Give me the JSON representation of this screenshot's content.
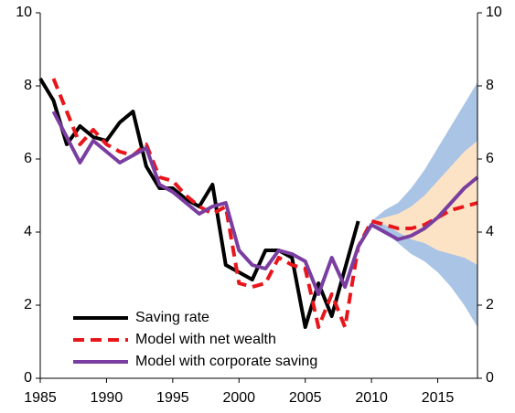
{
  "chart_data": {
    "type": "line",
    "xlim": [
      1985,
      2018
    ],
    "xticks": [
      1985,
      1990,
      1995,
      2000,
      2005,
      2010,
      2015
    ],
    "ylim": [
      0,
      10
    ],
    "yticks": [
      0,
      2,
      4,
      6,
      8,
      10
    ],
    "y2lim": [
      0,
      10
    ],
    "y2ticks": [
      0,
      2,
      4,
      6,
      8,
      10
    ],
    "legend": "lower left",
    "bands": [
      {
        "color": "#a9c4e4",
        "x": [
          2010,
          2011,
          2012,
          2013,
          2014,
          2015,
          2016,
          2017,
          2018
        ],
        "lower": [
          4.3,
          4.0,
          3.7,
          3.4,
          3.2,
          2.9,
          2.5,
          2.0,
          1.4
        ],
        "upper": [
          4.3,
          4.6,
          4.8,
          5.2,
          5.7,
          6.3,
          6.9,
          7.5,
          8.1
        ]
      },
      {
        "color": "#fde3c6",
        "x": [
          2010,
          2011,
          2012,
          2013,
          2014,
          2015,
          2016,
          2017,
          2018
        ],
        "lower": [
          4.3,
          4.2,
          4.0,
          3.8,
          3.7,
          3.5,
          3.4,
          3.3,
          3.1
        ],
        "upper": [
          4.3,
          4.4,
          4.5,
          4.7,
          5.0,
          5.4,
          5.8,
          6.2,
          6.5
        ]
      }
    ],
    "series": [
      {
        "name": "Saving rate",
        "color": "#000000",
        "dash": false,
        "x": [
          1985,
          1986,
          1987,
          1988,
          1989,
          1990,
          1991,
          1992,
          1993,
          1994,
          1995,
          1996,
          1997,
          1998,
          1999,
          2000,
          2001,
          2002,
          2003,
          2004,
          2005,
          2006,
          2007,
          2008,
          2009
        ],
        "values": [
          8.2,
          7.6,
          6.4,
          6.9,
          6.6,
          6.5,
          7.0,
          7.3,
          5.8,
          5.2,
          5.2,
          4.9,
          4.7,
          5.3,
          3.1,
          2.9,
          2.7,
          3.5,
          3.5,
          3.3,
          1.4,
          2.6,
          1.7,
          3.0,
          4.3
        ]
      },
      {
        "name": "Model with net wealth",
        "color": "#e8161b",
        "dash": true,
        "x": [
          1986,
          1987,
          1988,
          1989,
          1990,
          1991,
          1992,
          1993,
          1994,
          1995,
          1996,
          1997,
          1998,
          1999,
          2000,
          2001,
          2002,
          2003,
          2004,
          2005,
          2006,
          2007,
          2008,
          2009,
          2010,
          2011,
          2012,
          2013,
          2014,
          2015,
          2016,
          2017,
          2018
        ],
        "values": [
          8.2,
          7.3,
          6.4,
          6.8,
          6.4,
          6.2,
          6.1,
          6.4,
          5.5,
          5.4,
          5.0,
          4.7,
          4.5,
          4.7,
          2.6,
          2.5,
          2.6,
          3.3,
          3.1,
          3.0,
          1.4,
          2.3,
          1.4,
          3.6,
          4.3,
          4.2,
          4.1,
          4.1,
          4.2,
          4.4,
          4.6,
          4.7,
          4.8
        ]
      },
      {
        "name": "Model with corporate saving",
        "color": "#7a3ea0",
        "dash": false,
        "x": [
          1986,
          1987,
          1988,
          1989,
          1990,
          1991,
          1992,
          1993,
          1994,
          1995,
          1996,
          1997,
          1998,
          1999,
          2000,
          2001,
          2002,
          2003,
          2004,
          2005,
          2006,
          2007,
          2008,
          2009,
          2010,
          2011,
          2012,
          2013,
          2014,
          2015,
          2016,
          2017,
          2018
        ],
        "values": [
          7.3,
          6.6,
          5.9,
          6.5,
          6.2,
          5.9,
          6.1,
          6.3,
          5.3,
          5.1,
          4.8,
          4.5,
          4.7,
          4.8,
          3.5,
          3.1,
          3.0,
          3.5,
          3.4,
          3.2,
          2.3,
          3.3,
          2.5,
          3.6,
          4.2,
          4.0,
          3.8,
          3.9,
          4.1,
          4.4,
          4.8,
          5.2,
          5.5
        ]
      }
    ]
  }
}
